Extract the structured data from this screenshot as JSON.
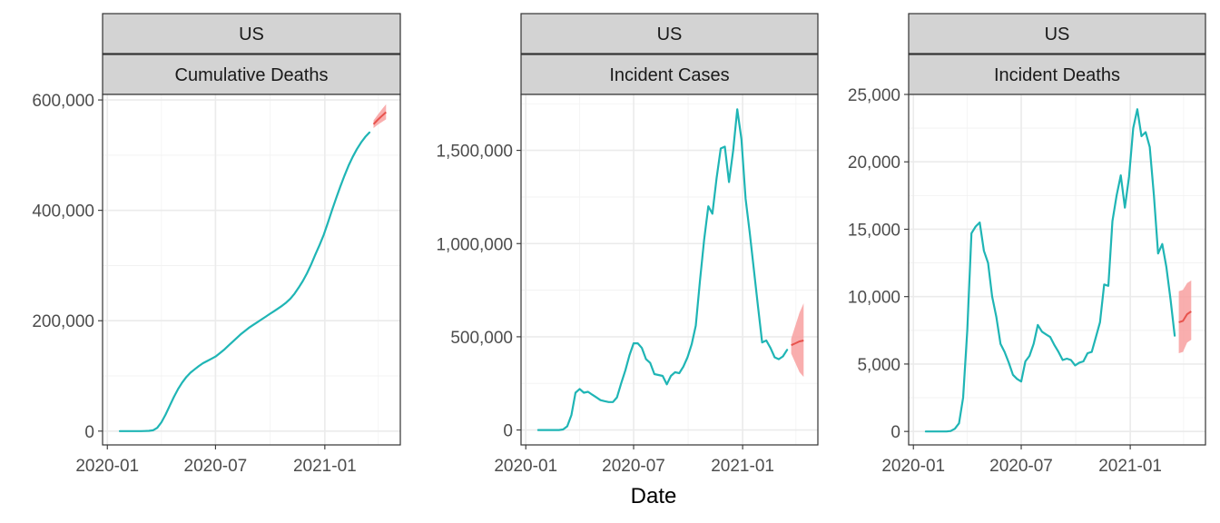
{
  "colors": {
    "observed": "#1fb5b5",
    "forecast": "#e8534d",
    "forecast_band": "#f8a0a0"
  },
  "xlabel": "Date",
  "chart_data": [
    {
      "type": "line",
      "facet_labels": [
        "US",
        "Cumulative Deaths"
      ],
      "xlim": [
        "2019-12-24",
        "2021-05-08"
      ],
      "ylim": [
        -25000,
        610000
      ],
      "x_ticks": [
        "2020-01-01",
        "2020-07-01",
        "2021-01-01"
      ],
      "x_tick_labels": [
        "2020-01",
        "2020-07",
        "2021-01"
      ],
      "y_ticks": [
        0,
        200000,
        400000,
        600000
      ],
      "y_tick_labels": [
        "0",
        "200,000",
        "400,000",
        "600,000"
      ],
      "series": [
        {
          "x": [
            "2020-01-22",
            "2020-01-29",
            "2020-02-05",
            "2020-02-12",
            "2020-02-19",
            "2020-02-26",
            "2020-03-04",
            "2020-03-11",
            "2020-03-18",
            "2020-03-25",
            "2020-04-01",
            "2020-04-08",
            "2020-04-15",
            "2020-04-22",
            "2020-04-29",
            "2020-05-06",
            "2020-05-13",
            "2020-05-20",
            "2020-05-27",
            "2020-06-03",
            "2020-06-10",
            "2020-06-17",
            "2020-06-24",
            "2020-07-01",
            "2020-07-08",
            "2020-07-15",
            "2020-07-22",
            "2020-07-29",
            "2020-08-05",
            "2020-08-12",
            "2020-08-19",
            "2020-08-26",
            "2020-09-02",
            "2020-09-09",
            "2020-09-16",
            "2020-09-23",
            "2020-09-30",
            "2020-10-07",
            "2020-10-14",
            "2020-10-21",
            "2020-10-28",
            "2020-11-04",
            "2020-11-11",
            "2020-11-18",
            "2020-11-25",
            "2020-12-02",
            "2020-12-09",
            "2020-12-16",
            "2020-12-23",
            "2020-12-30",
            "2021-01-06",
            "2021-01-13",
            "2021-01-20",
            "2021-01-27",
            "2021-02-03",
            "2021-02-10",
            "2021-02-17",
            "2021-02-24",
            "2021-03-03",
            "2021-03-10",
            "2021-03-17"
          ],
          "y": [
            0,
            0,
            0,
            0,
            0,
            0,
            100,
            500,
            1500,
            6000,
            16000,
            30000,
            46000,
            62000,
            76000,
            88000,
            98000,
            106000,
            112000,
            118000,
            123000,
            127000,
            131000,
            135000,
            141000,
            147000,
            154000,
            161000,
            168000,
            175000,
            181000,
            187000,
            192000,
            197000,
            202000,
            207000,
            212000,
            217000,
            222000,
            227000,
            233000,
            240000,
            249000,
            260000,
            272000,
            286000,
            302000,
            320000,
            337000,
            355000,
            377000,
            400000,
            422000,
            443000,
            463000,
            481000,
            497000,
            511000,
            523000,
            533000,
            541000
          ]
        },
        {
          "x": [
            "2021-03-24",
            "2021-03-31",
            "2021-04-07",
            "2021-04-14"
          ],
          "y": [
            556000,
            564000,
            571000,
            578000
          ],
          "lower": [
            549000,
            555000,
            560000,
            565000
          ],
          "upper": [
            563000,
            573000,
            583000,
            592000
          ]
        }
      ]
    },
    {
      "type": "line",
      "facet_labels": [
        "US",
        "Incident Cases"
      ],
      "xlim": [
        "2019-12-24",
        "2021-05-08"
      ],
      "ylim": [
        -80000,
        1800000
      ],
      "x_ticks": [
        "2020-01-01",
        "2020-07-01",
        "2021-01-01"
      ],
      "x_tick_labels": [
        "2020-01",
        "2020-07",
        "2021-01"
      ],
      "y_ticks": [
        0,
        500000,
        1000000,
        1500000
      ],
      "y_tick_labels": [
        "0",
        "500,000",
        "1,000,000",
        "1,500,000"
      ],
      "series": [
        {
          "x": [
            "2020-01-22",
            "2020-01-29",
            "2020-02-05",
            "2020-02-12",
            "2020-02-19",
            "2020-02-26",
            "2020-03-04",
            "2020-03-11",
            "2020-03-18",
            "2020-03-25",
            "2020-04-01",
            "2020-04-08",
            "2020-04-15",
            "2020-04-22",
            "2020-04-29",
            "2020-05-06",
            "2020-05-13",
            "2020-05-20",
            "2020-05-27",
            "2020-06-03",
            "2020-06-10",
            "2020-06-17",
            "2020-06-24",
            "2020-07-01",
            "2020-07-08",
            "2020-07-15",
            "2020-07-22",
            "2020-07-29",
            "2020-08-05",
            "2020-08-12",
            "2020-08-19",
            "2020-08-26",
            "2020-09-02",
            "2020-09-09",
            "2020-09-16",
            "2020-09-23",
            "2020-09-30",
            "2020-10-07",
            "2020-10-14",
            "2020-10-21",
            "2020-10-28",
            "2020-11-04",
            "2020-11-11",
            "2020-11-18",
            "2020-11-25",
            "2020-12-02",
            "2020-12-09",
            "2020-12-16",
            "2020-12-23",
            "2020-12-30",
            "2021-01-06",
            "2021-01-13",
            "2021-01-20",
            "2021-01-27",
            "2021-02-03",
            "2021-02-10",
            "2021-02-17",
            "2021-02-24",
            "2021-03-03",
            "2021-03-10",
            "2021-03-17"
          ],
          "y": [
            0,
            0,
            0,
            0,
            0,
            0,
            3000,
            20000,
            80000,
            200000,
            220000,
            200000,
            205000,
            190000,
            175000,
            160000,
            155000,
            150000,
            150000,
            175000,
            250000,
            320000,
            400000,
            465000,
            465000,
            440000,
            380000,
            360000,
            300000,
            295000,
            290000,
            245000,
            290000,
            310000,
            305000,
            340000,
            390000,
            460000,
            560000,
            800000,
            1020000,
            1200000,
            1160000,
            1350000,
            1510000,
            1520000,
            1330000,
            1500000,
            1720000,
            1560000,
            1240000,
            1060000,
            860000,
            660000,
            470000,
            480000,
            440000,
            390000,
            380000,
            395000,
            430000
          ]
        },
        {
          "x": [
            "2021-03-24",
            "2021-03-31",
            "2021-04-07",
            "2021-04-14"
          ],
          "y": [
            455000,
            465000,
            475000,
            480000
          ],
          "lower": [
            410000,
            360000,
            310000,
            285000
          ],
          "upper": [
            490000,
            560000,
            630000,
            680000
          ]
        }
      ]
    },
    {
      "type": "line",
      "facet_labels": [
        "US",
        "Incident Deaths"
      ],
      "xlim": [
        "2019-12-24",
        "2021-05-08"
      ],
      "ylim": [
        -1000,
        25000
      ],
      "x_ticks": [
        "2020-01-01",
        "2020-07-01",
        "2021-01-01"
      ],
      "x_tick_labels": [
        "2020-01",
        "2020-07",
        "2021-01"
      ],
      "y_ticks": [
        0,
        5000,
        10000,
        15000,
        20000,
        25000
      ],
      "y_tick_labels": [
        "0",
        "5,000",
        "10,000",
        "15,000",
        "20,000",
        "25,000"
      ],
      "series": [
        {
          "x": [
            "2020-01-22",
            "2020-01-29",
            "2020-02-05",
            "2020-02-12",
            "2020-02-19",
            "2020-02-26",
            "2020-03-04",
            "2020-03-11",
            "2020-03-18",
            "2020-03-25",
            "2020-04-01",
            "2020-04-08",
            "2020-04-15",
            "2020-04-22",
            "2020-04-29",
            "2020-05-06",
            "2020-05-13",
            "2020-05-20",
            "2020-05-27",
            "2020-06-03",
            "2020-06-10",
            "2020-06-17",
            "2020-06-24",
            "2020-07-01",
            "2020-07-08",
            "2020-07-15",
            "2020-07-22",
            "2020-07-29",
            "2020-08-05",
            "2020-08-12",
            "2020-08-19",
            "2020-08-26",
            "2020-09-02",
            "2020-09-09",
            "2020-09-16",
            "2020-09-23",
            "2020-09-30",
            "2020-10-07",
            "2020-10-14",
            "2020-10-21",
            "2020-10-28",
            "2020-11-04",
            "2020-11-11",
            "2020-11-18",
            "2020-11-25",
            "2020-12-02",
            "2020-12-09",
            "2020-12-16",
            "2020-12-23",
            "2020-12-30",
            "2021-01-06",
            "2021-01-13",
            "2021-01-20",
            "2021-01-27",
            "2021-02-03",
            "2021-02-10",
            "2021-02-17",
            "2021-02-24",
            "2021-03-03",
            "2021-03-10",
            "2021-03-17"
          ],
          "y": [
            0,
            0,
            0,
            0,
            0,
            0,
            30,
            200,
            600,
            2500,
            7500,
            14700,
            15200,
            15500,
            13400,
            12500,
            10000,
            8500,
            6500,
            5900,
            5100,
            4200,
            3900,
            3700,
            5200,
            5600,
            6500,
            7900,
            7400,
            7200,
            7000,
            6400,
            5900,
            5300,
            5400,
            5300,
            4900,
            5100,
            5200,
            5800,
            5900,
            7000,
            8100,
            10900,
            10800,
            15600,
            17500,
            19000,
            16600,
            18900,
            22500,
            23900,
            21900,
            22200,
            21100,
            17500,
            13200,
            13900,
            12200,
            9800,
            7100
          ]
        },
        {
          "x": [
            "2021-03-24",
            "2021-03-31",
            "2021-04-07",
            "2021-04-14"
          ],
          "y": [
            8100,
            8200,
            8700,
            8900
          ],
          "lower": [
            5800,
            5900,
            6600,
            6800
          ],
          "upper": [
            10400,
            10500,
            11000,
            11200
          ]
        }
      ]
    }
  ]
}
